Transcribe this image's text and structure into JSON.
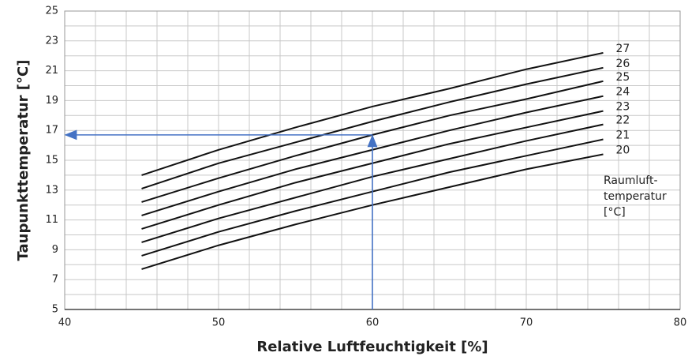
{
  "chart_data": {
    "type": "line",
    "xlabel": "Relative Luftfeuchtigkeit [%]",
    "ylabel": "Taupunkttemperatur [°C]",
    "annotation": [
      "Raumluft-",
      "temperatur",
      "[°C]"
    ],
    "x": [
      45,
      50,
      55,
      60,
      65,
      70,
      75
    ],
    "series": [
      {
        "name": "20",
        "color": "#111111",
        "values": [
          7.7,
          9.3,
          10.7,
          12.0,
          13.2,
          14.4,
          15.4
        ]
      },
      {
        "name": "21",
        "color": "#111111",
        "values": [
          8.6,
          10.2,
          11.6,
          12.9,
          14.2,
          15.3,
          16.4
        ]
      },
      {
        "name": "22",
        "color": "#111111",
        "values": [
          9.5,
          11.1,
          12.5,
          13.9,
          15.1,
          16.3,
          17.4
        ]
      },
      {
        "name": "23",
        "color": "#111111",
        "values": [
          10.4,
          12.0,
          13.5,
          14.8,
          16.1,
          17.2,
          18.3
        ]
      },
      {
        "name": "24",
        "color": "#111111",
        "values": [
          11.3,
          12.9,
          14.4,
          15.7,
          17.0,
          18.2,
          19.3
        ]
      },
      {
        "name": "25",
        "color": "#111111",
        "values": [
          12.2,
          13.8,
          15.3,
          16.7,
          18.0,
          19.1,
          20.3
        ]
      },
      {
        "name": "26",
        "color": "#111111",
        "values": [
          13.1,
          14.8,
          16.2,
          17.6,
          18.9,
          20.1,
          21.2
        ]
      },
      {
        "name": "27",
        "color": "#111111",
        "values": [
          14.0,
          15.7,
          17.2,
          18.6,
          19.8,
          21.1,
          22.2
        ]
      }
    ],
    "reference": {
      "x": 60,
      "y": 16.7,
      "color": "#4472c4"
    },
    "xlim": [
      40,
      80
    ],
    "xticks": [
      40,
      50,
      60,
      70,
      80
    ],
    "ylim": [
      5,
      25
    ],
    "yticks": [
      5,
      7,
      9,
      11,
      13,
      15,
      17,
      19,
      21,
      23,
      25
    ],
    "xminor": [
      42,
      44,
      46,
      48,
      52,
      54,
      56,
      58,
      62,
      64,
      66,
      68,
      72,
      74,
      76,
      78
    ],
    "yminor": [
      6,
      8,
      10,
      12,
      14,
      16,
      18,
      20,
      22,
      24
    ],
    "grid": true
  }
}
